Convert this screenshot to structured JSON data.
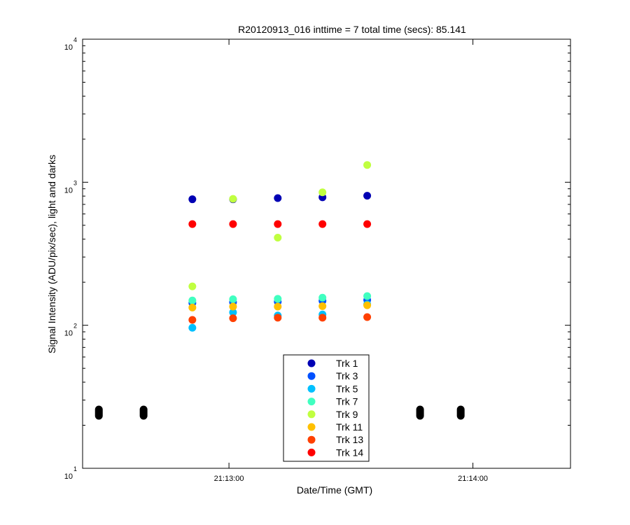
{
  "chart_data": {
    "type": "scatter",
    "title": "R20120913_016 inttime = 7 total time (secs): 85.141",
    "xlabel": "Date/Time (GMT)",
    "ylabel": "Signal Intensity (ADU/pix/sec), light and darks",
    "y_scale": "log",
    "ylim": [
      10,
      10000
    ],
    "xlim": [
      "21:12:24",
      "21:14:24"
    ],
    "x_ticks": [
      "21:13:00",
      "21:14:00"
    ],
    "y_ticks": [
      {
        "base": "10",
        "exp": "1"
      },
      {
        "base": "10",
        "exp": "2"
      },
      {
        "base": "10",
        "exp": "3"
      },
      {
        "base": "10",
        "exp": "4"
      }
    ],
    "grid": false,
    "legend_position": "bottom-center",
    "series": [
      {
        "name": "Trk 1",
        "color": "#0000b4",
        "x": [
          "21:12:51",
          "21:13:01",
          "21:13:12",
          "21:13:23",
          "21:13:34"
        ],
        "y": [
          760,
          760,
          775,
          785,
          805
        ]
      },
      {
        "name": "Trk 3",
        "color": "#0050ff",
        "x": [
          "21:12:51",
          "21:13:01",
          "21:13:12",
          "21:13:23",
          "21:13:34"
        ],
        "y": [
          143,
          145,
          146,
          148,
          150
        ]
      },
      {
        "name": "Trk 5",
        "color": "#00c0ff",
        "x": [
          "21:12:51",
          "21:13:01",
          "21:13:12",
          "21:13:23",
          "21:13:34"
        ],
        "y": [
          96,
          123,
          117,
          119,
          140
        ]
      },
      {
        "name": "Trk 7",
        "color": "#40ffc0",
        "x": [
          "21:12:51",
          "21:13:01",
          "21:13:12",
          "21:13:23",
          "21:13:34"
        ],
        "y": [
          149,
          152,
          153,
          156,
          160
        ]
      },
      {
        "name": "Trk 9",
        "color": "#c0ff40",
        "x": [
          "21:12:51",
          "21:13:01",
          "21:13:12",
          "21:13:23",
          "21:13:34"
        ],
        "y": [
          187,
          765,
          410,
          850,
          1320
        ]
      },
      {
        "name": "Trk 11",
        "color": "#ffc000",
        "x": [
          "21:12:51",
          "21:13:01",
          "21:13:12",
          "21:13:23",
          "21:13:34"
        ],
        "y": [
          133,
          135,
          135,
          136,
          138
        ]
      },
      {
        "name": "Trk 13",
        "color": "#ff4000",
        "x": [
          "21:12:51",
          "21:13:01",
          "21:13:12",
          "21:13:23",
          "21:13:34"
        ],
        "y": [
          109,
          112,
          113,
          113,
          114
        ]
      },
      {
        "name": "Trk 14",
        "color": "#ff0000",
        "x": [
          "21:12:51",
          "21:13:01",
          "21:13:12",
          "21:13:23",
          "21:13:34"
        ],
        "y": [
          510,
          510,
          510,
          510,
          510
        ]
      }
    ],
    "darks": {
      "color": "#000000",
      "x": [
        "21:12:28",
        "21:12:39",
        "21:13:47",
        "21:13:57"
      ],
      "y": [
        24.5,
        24.5,
        24.5,
        24.5
      ]
    }
  }
}
